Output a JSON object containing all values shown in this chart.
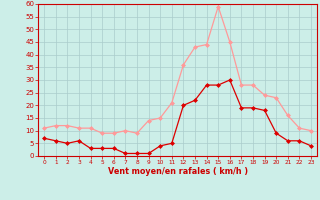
{
  "hours": [
    0,
    1,
    2,
    3,
    4,
    5,
    6,
    7,
    8,
    9,
    10,
    11,
    12,
    13,
    14,
    15,
    16,
    17,
    18,
    19,
    20,
    21,
    22,
    23
  ],
  "wind_avg": [
    7,
    6,
    5,
    6,
    3,
    3,
    3,
    1,
    1,
    1,
    4,
    5,
    20,
    22,
    28,
    28,
    30,
    19,
    19,
    18,
    9,
    6,
    6,
    4
  ],
  "wind_gust": [
    11,
    12,
    12,
    11,
    11,
    9,
    9,
    10,
    9,
    14,
    15,
    21,
    36,
    43,
    44,
    59,
    45,
    28,
    28,
    24,
    23,
    16,
    11,
    10
  ],
  "avg_color": "#dd0000",
  "gust_color": "#ff9999",
  "bg_color": "#cceee8",
  "grid_color": "#aacccc",
  "axis_label_color": "#cc0000",
  "tick_label_color": "#cc0000",
  "spine_color": "#cc0000",
  "xlabel": "Vent moyen/en rafales ( km/h )",
  "ylim": [
    0,
    60
  ],
  "yticks": [
    0,
    5,
    10,
    15,
    20,
    25,
    30,
    35,
    40,
    45,
    50,
    55,
    60
  ],
  "marker": "D",
  "markersize": 2.0,
  "linewidth": 0.9
}
